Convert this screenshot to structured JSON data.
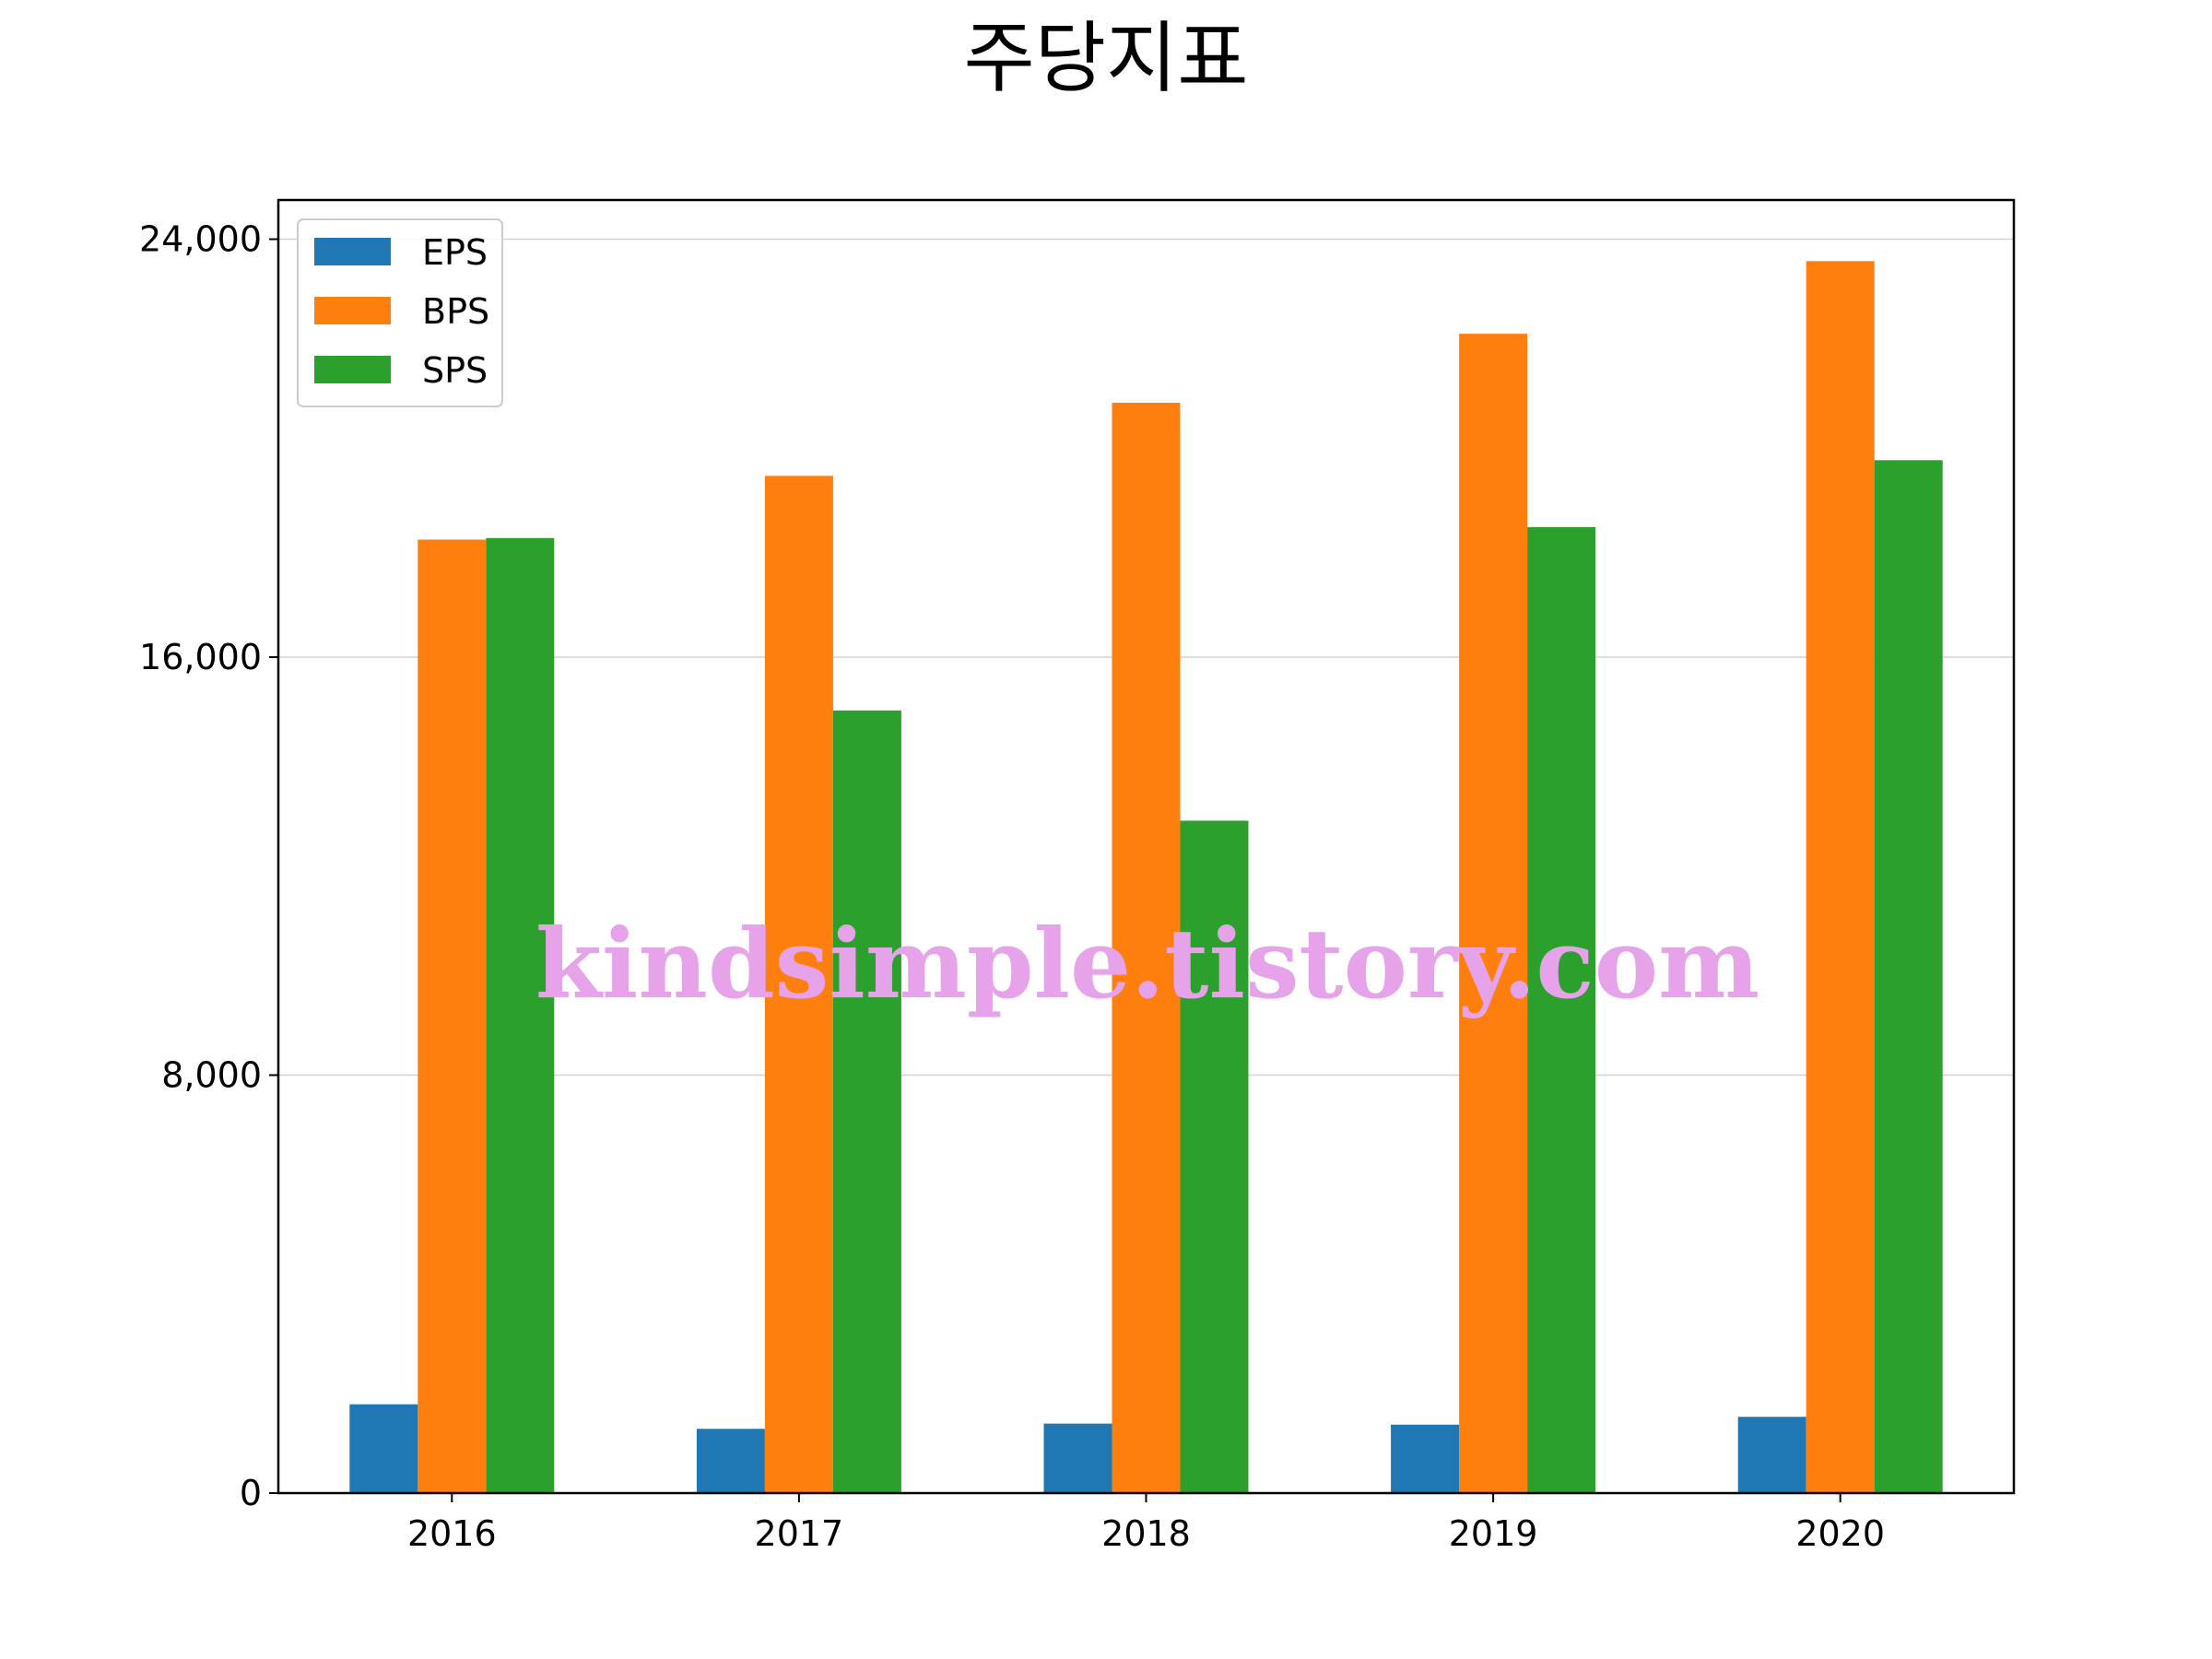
{
  "chart_data": {
    "type": "bar",
    "title": "주당지표",
    "xlabel": "",
    "ylabel": "",
    "categories": [
      "2016",
      "2017",
      "2018",
      "2019",
      "2020"
    ],
    "series": [
      {
        "name": "EPS",
        "color": "#1f77b4",
        "values": [
          1700,
          1230,
          1330,
          1310,
          1460
        ]
      },
      {
        "name": "BPS",
        "color": "#ff7f0e",
        "values": [
          18250,
          19470,
          20870,
          22190,
          23580
        ]
      },
      {
        "name": "SPS",
        "color": "#2ca02c",
        "values": [
          18280,
          14980,
          12870,
          18490,
          19770
        ]
      }
    ],
    "ylim": [
      0,
      24750
    ],
    "yticks": [
      0,
      8000,
      16000,
      24000
    ],
    "ytick_labels": [
      "0",
      "8,000",
      "16,000",
      "24,000"
    ],
    "grid": "horizontal",
    "legend_position": "top-left"
  },
  "watermark": {
    "text": "kindsimple.tistory.com",
    "color": "#e6a3ea"
  }
}
